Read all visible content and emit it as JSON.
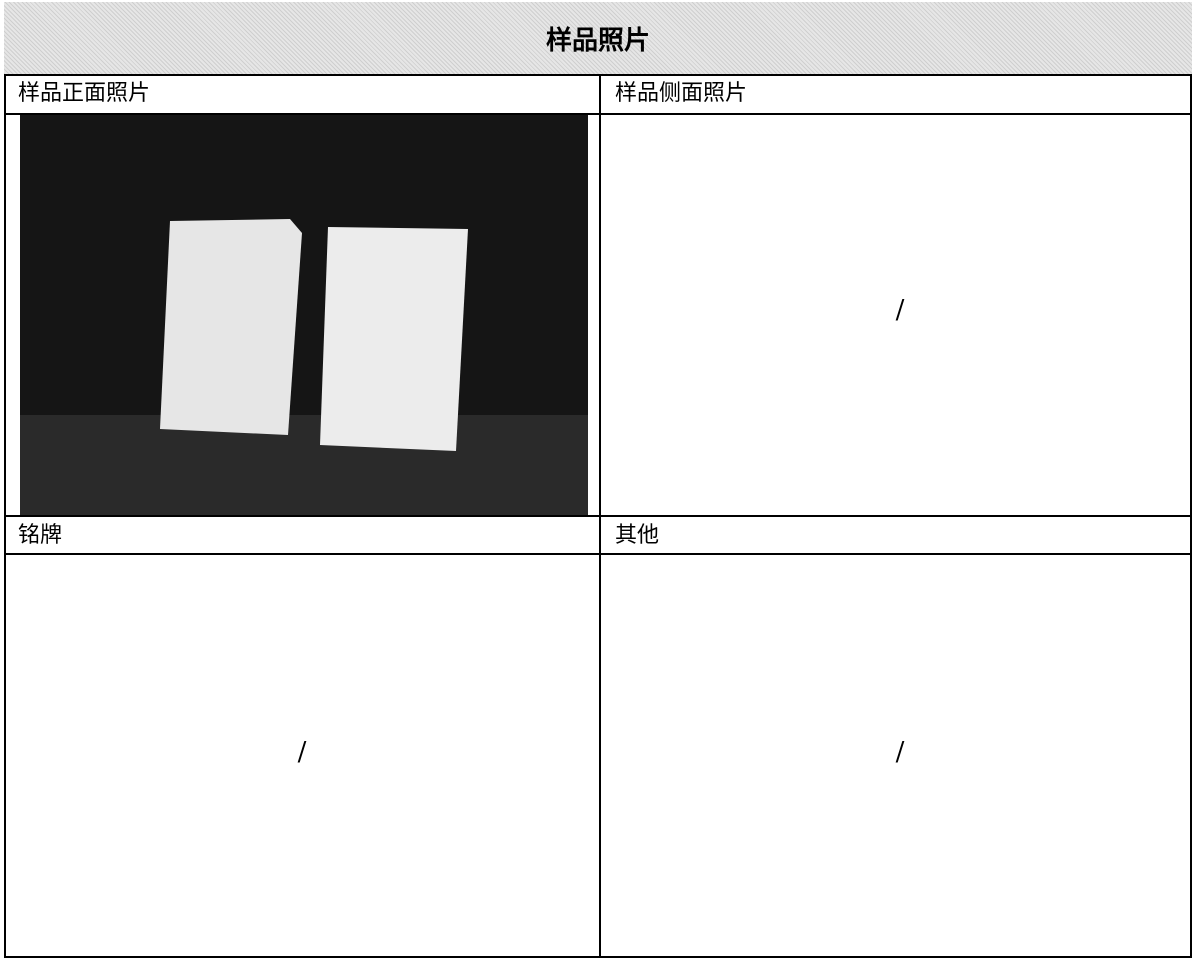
{
  "table": {
    "title": "样品照片",
    "cells": [
      {
        "label": "样品正面照片"
      },
      {
        "label": "样品侧面照片",
        "content": "/"
      },
      {
        "label": "铭牌",
        "content": "/"
      },
      {
        "label": "其他",
        "content": "/"
      }
    ]
  }
}
